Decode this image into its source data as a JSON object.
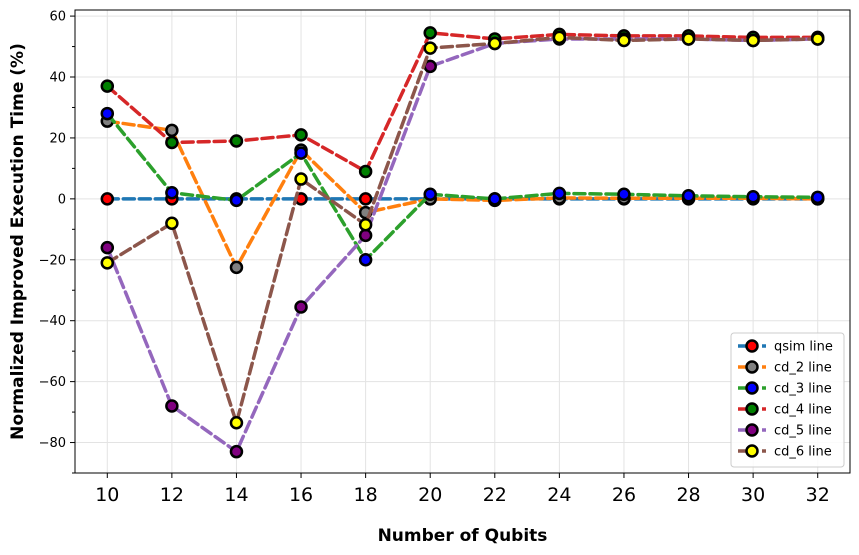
{
  "chart_data": {
    "type": "line",
    "xlabel": "Number of Qubits",
    "ylabel": "Normalized Improved Execution Time (%)",
    "x": [
      10,
      12,
      14,
      16,
      18,
      20,
      22,
      24,
      26,
      28,
      30,
      32
    ],
    "xlim": [
      9,
      33
    ],
    "ylim": [
      -90,
      62
    ],
    "yticks": [
      -80,
      -60,
      -40,
      -20,
      0,
      20,
      40,
      60
    ],
    "grid": true,
    "legend_position": "bottom-right",
    "series": [
      {
        "name": "qsim line",
        "line_color": "#1f77b4",
        "marker_color": "#ff0000",
        "values": [
          0,
          0,
          0,
          0,
          0,
          0,
          0,
          0,
          0,
          0,
          0,
          0
        ]
      },
      {
        "name": "cd_2 line",
        "line_color": "#ff7f0e",
        "marker_color": "#808080",
        "values": [
          25.5,
          22.5,
          -22.5,
          16,
          -4.5,
          0,
          -0.5,
          0.3,
          0.2,
          0.2,
          0.2,
          0
        ]
      },
      {
        "name": "cd_3 line",
        "line_color": "#2ca02c",
        "marker_color": "#0000ff",
        "values": [
          28,
          2,
          -0.5,
          15,
          -20,
          1.5,
          0,
          1.8,
          1.5,
          1,
          0.7,
          0.5
        ]
      },
      {
        "name": "cd_4 line",
        "line_color": "#d62728",
        "marker_color": "#008000",
        "values": [
          37,
          18.5,
          19,
          21,
          9,
          54.5,
          52.5,
          54,
          53.5,
          53.5,
          53,
          53
        ]
      },
      {
        "name": "cd_5 line",
        "line_color": "#9467bd",
        "marker_color": "#800080",
        "values": [
          -16,
          -68,
          -83,
          -35.5,
          -12,
          43.5,
          51,
          52.5,
          52.5,
          52.5,
          52,
          52.5
        ]
      },
      {
        "name": "cd_6 line",
        "line_color": "#8c564b",
        "marker_color": "#ffff00",
        "values": [
          -21,
          -8,
          -73.5,
          6.5,
          -8.5,
          49.5,
          51,
          53,
          52,
          52.5,
          52,
          52.5
        ]
      }
    ]
  }
}
